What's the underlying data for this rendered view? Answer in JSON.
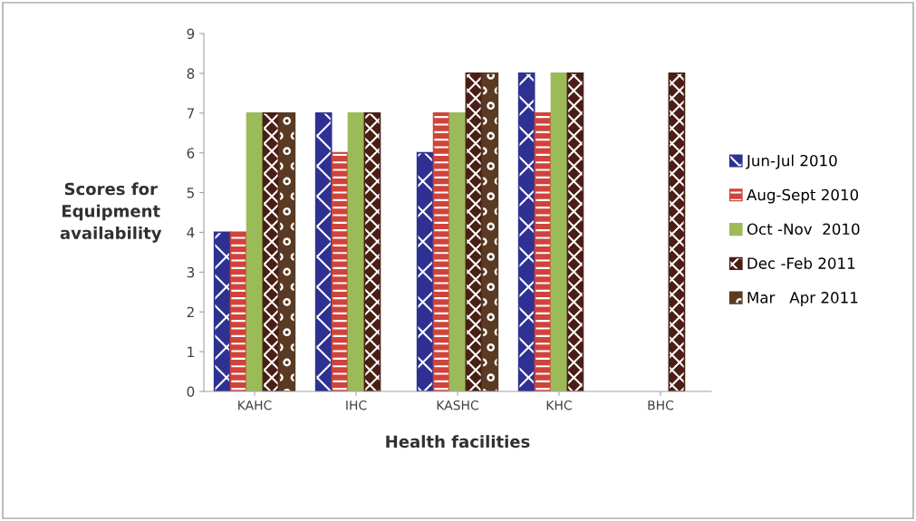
{
  "chart_data": {
    "type": "bar",
    "xlabel": "Health facilities",
    "ylabel": "Scores for\nEquipment\navailability",
    "categories": [
      "KAHC",
      "IHC",
      "KASHC",
      "KHC",
      "BHC"
    ],
    "series": [
      {
        "name": "Jun-Jul 2010",
        "color": "#2e3192",
        "values": [
          4,
          7,
          6,
          8,
          null
        ]
      },
      {
        "name": "Aug-Sept 2010",
        "color": "#d0433a",
        "values": [
          4,
          6,
          7,
          7,
          null
        ]
      },
      {
        "name": "Oct -Nov  2010",
        "color": "#9bbb59",
        "values": [
          7,
          7,
          7,
          8,
          null
        ]
      },
      {
        "name": "Dec -Feb 2011",
        "color": "#4a1e14",
        "values": [
          7,
          7,
          8,
          8,
          8
        ]
      },
      {
        "name": "Mar   Apr 2011",
        "color": "#5a3a22",
        "values": [
          7,
          null,
          8,
          null,
          null
        ]
      }
    ],
    "ylim": [
      0,
      9
    ],
    "yticks": [
      0,
      1,
      2,
      3,
      4,
      5,
      6,
      7,
      8,
      9
    ],
    "grid": false,
    "legend": "right"
  }
}
